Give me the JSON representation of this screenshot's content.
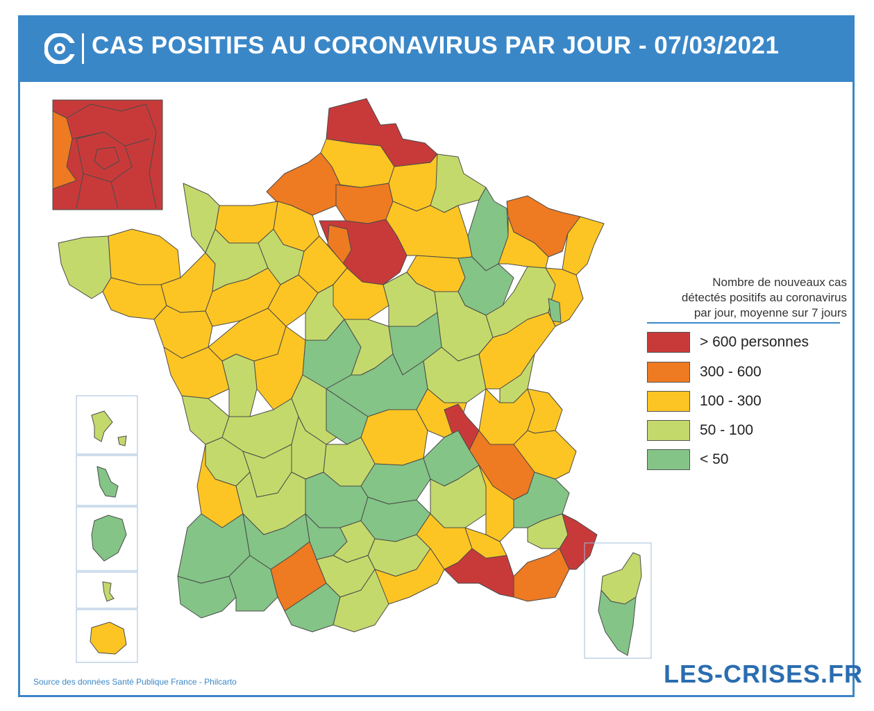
{
  "header": {
    "title": "CAS POSITIFS AU CORONAVIRUS PAR JOUR - 07/03/2021",
    "logo_icon": "les-crises-logo-icon"
  },
  "legend": {
    "title_lines": [
      "Nombre de nouveaux cas",
      "détectés positifs au coronavirus",
      "par jour, moyenne sur 7 jours"
    ],
    "items": [
      {
        "label": "> 600 personnes",
        "color": "#c83a3a"
      },
      {
        "label": "300 - 600",
        "color": "#ee7a22"
      },
      {
        "label": "100 - 300",
        "color": "#fdc523"
      },
      {
        "label": "50 - 100",
        "color": "#c4d96b"
      },
      {
        "label": "< 50",
        "color": "#84c487"
      }
    ]
  },
  "source": "Source des données Santé Publique France - Philcarto",
  "brand": "LES-CRISES.FR",
  "colors": {
    "frame": "#3a87c8",
    "border": "#4a4a4a"
  }
}
